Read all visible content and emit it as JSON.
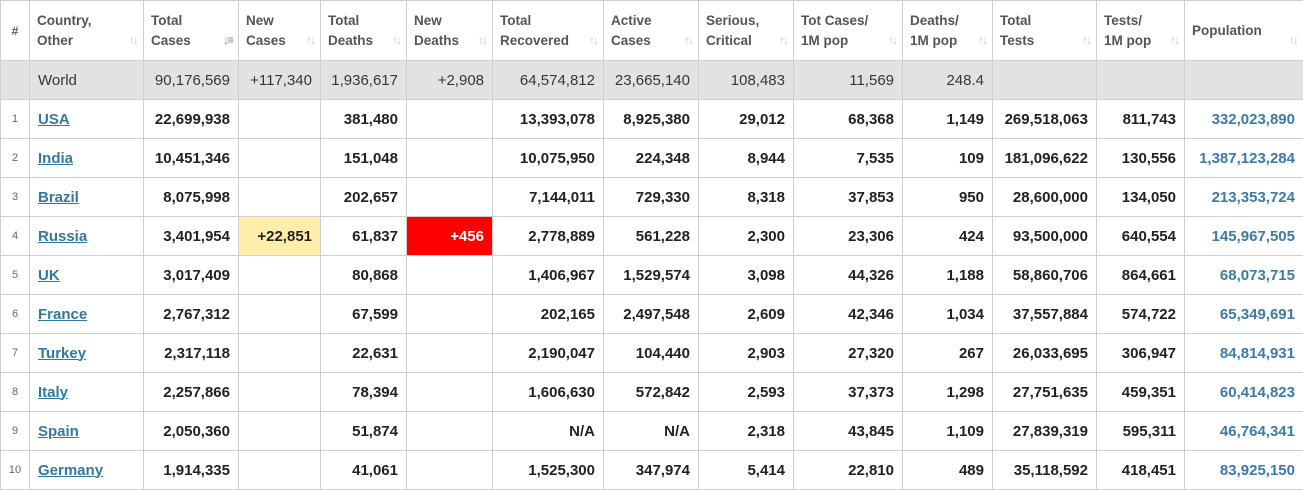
{
  "columns": [
    {
      "key": "num",
      "line1": "#",
      "line2": ""
    },
    {
      "key": "country",
      "line1": "Country,",
      "line2": "Other"
    },
    {
      "key": "total_cases",
      "line1": "Total",
      "line2": "Cases"
    },
    {
      "key": "new_cases",
      "line1": "New",
      "line2": "Cases"
    },
    {
      "key": "total_deaths",
      "line1": "Total",
      "line2": "Deaths"
    },
    {
      "key": "new_deaths",
      "line1": "New",
      "line2": "Deaths"
    },
    {
      "key": "total_recovered",
      "line1": "Total",
      "line2": "Recovered"
    },
    {
      "key": "active_cases",
      "line1": "Active",
      "line2": "Cases"
    },
    {
      "key": "serious",
      "line1": "Serious,",
      "line2": "Critical"
    },
    {
      "key": "cases_1m",
      "line1": "Tot Cases/",
      "line2": "1M pop"
    },
    {
      "key": "deaths_1m",
      "line1": "Deaths/",
      "line2": "1M pop"
    },
    {
      "key": "total_tests",
      "line1": "Total",
      "line2": "Tests"
    },
    {
      "key": "tests_1m",
      "line1": "Tests/",
      "line2": "1M pop"
    },
    {
      "key": "population",
      "line1": "Population",
      "line2": ""
    }
  ],
  "sorted_column": "total_cases",
  "world": {
    "country": "World",
    "total_cases": "90,176,569",
    "new_cases": "+117,340",
    "total_deaths": "1,936,617",
    "new_deaths": "+2,908",
    "total_recovered": "64,574,812",
    "active_cases": "23,665,140",
    "serious": "108,483",
    "cases_1m": "11,569",
    "deaths_1m": "248.4",
    "total_tests": "",
    "tests_1m": "",
    "population": ""
  },
  "rows": [
    {
      "num": "1",
      "country": "USA",
      "total_cases": "22,699,938",
      "new_cases": "",
      "total_deaths": "381,480",
      "new_deaths": "",
      "total_recovered": "13,393,078",
      "active_cases": "8,925,380",
      "serious": "29,012",
      "cases_1m": "68,368",
      "deaths_1m": "1,149",
      "total_tests": "269,518,063",
      "tests_1m": "811,743",
      "population": "332,023,890"
    },
    {
      "num": "2",
      "country": "India",
      "total_cases": "10,451,346",
      "new_cases": "",
      "total_deaths": "151,048",
      "new_deaths": "",
      "total_recovered": "10,075,950",
      "active_cases": "224,348",
      "serious": "8,944",
      "cases_1m": "7,535",
      "deaths_1m": "109",
      "total_tests": "181,096,622",
      "tests_1m": "130,556",
      "population": "1,387,123,284"
    },
    {
      "num": "3",
      "country": "Brazil",
      "total_cases": "8,075,998",
      "new_cases": "",
      "total_deaths": "202,657",
      "new_deaths": "",
      "total_recovered": "7,144,011",
      "active_cases": "729,330",
      "serious": "8,318",
      "cases_1m": "37,853",
      "deaths_1m": "950",
      "total_tests": "28,600,000",
      "tests_1m": "134,050",
      "population": "213,353,724"
    },
    {
      "num": "4",
      "country": "Russia",
      "total_cases": "3,401,954",
      "new_cases": "+22,851",
      "total_deaths": "61,837",
      "new_deaths": "+456",
      "total_recovered": "2,778,889",
      "active_cases": "561,228",
      "serious": "2,300",
      "cases_1m": "23,306",
      "deaths_1m": "424",
      "total_tests": "93,500,000",
      "tests_1m": "640,554",
      "population": "145,967,505"
    },
    {
      "num": "5",
      "country": "UK",
      "total_cases": "3,017,409",
      "new_cases": "",
      "total_deaths": "80,868",
      "new_deaths": "",
      "total_recovered": "1,406,967",
      "active_cases": "1,529,574",
      "serious": "3,098",
      "cases_1m": "44,326",
      "deaths_1m": "1,188",
      "total_tests": "58,860,706",
      "tests_1m": "864,661",
      "population": "68,073,715"
    },
    {
      "num": "6",
      "country": "France",
      "total_cases": "2,767,312",
      "new_cases": "",
      "total_deaths": "67,599",
      "new_deaths": "",
      "total_recovered": "202,165",
      "active_cases": "2,497,548",
      "serious": "2,609",
      "cases_1m": "42,346",
      "deaths_1m": "1,034",
      "total_tests": "37,557,884",
      "tests_1m": "574,722",
      "population": "65,349,691"
    },
    {
      "num": "7",
      "country": "Turkey",
      "total_cases": "2,317,118",
      "new_cases": "",
      "total_deaths": "22,631",
      "new_deaths": "",
      "total_recovered": "2,190,047",
      "active_cases": "104,440",
      "serious": "2,903",
      "cases_1m": "27,320",
      "deaths_1m": "267",
      "total_tests": "26,033,695",
      "tests_1m": "306,947",
      "population": "84,814,931"
    },
    {
      "num": "8",
      "country": "Italy",
      "total_cases": "2,257,866",
      "new_cases": "",
      "total_deaths": "78,394",
      "new_deaths": "",
      "total_recovered": "1,606,630",
      "active_cases": "572,842",
      "serious": "2,593",
      "cases_1m": "37,373",
      "deaths_1m": "1,298",
      "total_tests": "27,751,635",
      "tests_1m": "459,351",
      "population": "60,414,823"
    },
    {
      "num": "9",
      "country": "Spain",
      "total_cases": "2,050,360",
      "new_cases": "",
      "total_deaths": "51,874",
      "new_deaths": "",
      "total_recovered": "N/A",
      "active_cases": "N/A",
      "serious": "2,318",
      "cases_1m": "43,845",
      "deaths_1m": "1,109",
      "total_tests": "27,839,319",
      "tests_1m": "595,311",
      "population": "46,764,341"
    },
    {
      "num": "10",
      "country": "Germany",
      "total_cases": "1,914,335",
      "new_cases": "",
      "total_deaths": "41,061",
      "new_deaths": "",
      "total_recovered": "1,525,300",
      "active_cases": "347,974",
      "serious": "5,414",
      "cases_1m": "22,810",
      "deaths_1m": "489",
      "total_tests": "35,118,592",
      "tests_1m": "418,451",
      "population": "83,925,150"
    }
  ],
  "highlight_colors": {
    "new_cases": "#ffeeaa",
    "new_deaths": "#ff0000",
    "world_row": "#e2e2e2",
    "link": "#33799e"
  }
}
